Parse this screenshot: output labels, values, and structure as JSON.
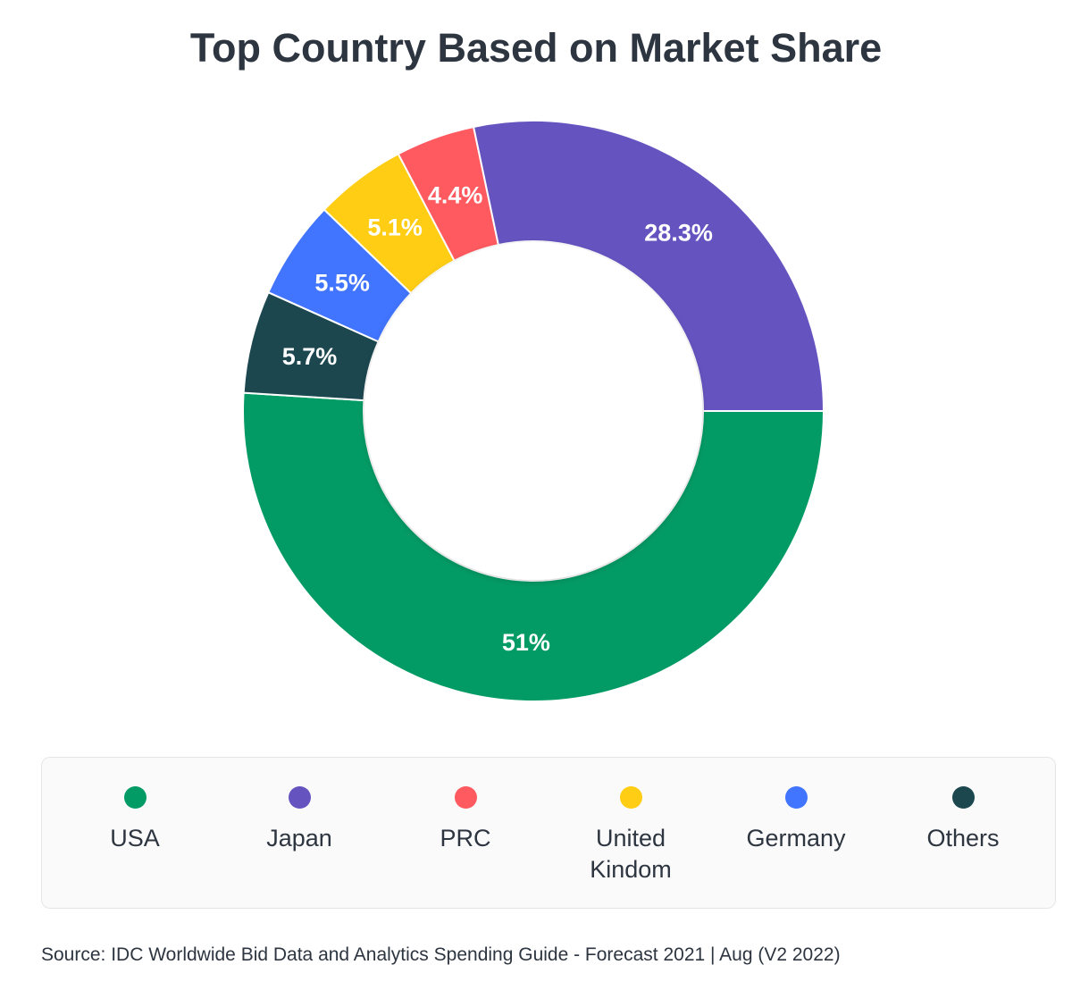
{
  "chart_data": {
    "type": "pie",
    "title": "Top Country Based on Market Share",
    "categories": [
      "USA",
      "Japan",
      "PRC",
      "United Kindom",
      "Germany",
      "Others"
    ],
    "values": [
      51,
      28.3,
      4.4,
      5.1,
      5.5,
      5.7
    ],
    "labels": [
      "51%",
      "28.3%",
      "4.4%",
      "5.1%",
      "5.5%",
      "5.7%"
    ],
    "colors": [
      "#039b65",
      "#6554c0",
      "#ff5a5f",
      "#ffcd14",
      "#4174ff",
      "#1c474f"
    ],
    "legend_position": "bottom",
    "source": "Source: IDC Worldwide Bid Data and Analytics Spending Guide - Forecast 2021 | Aug (V2 2022)"
  }
}
